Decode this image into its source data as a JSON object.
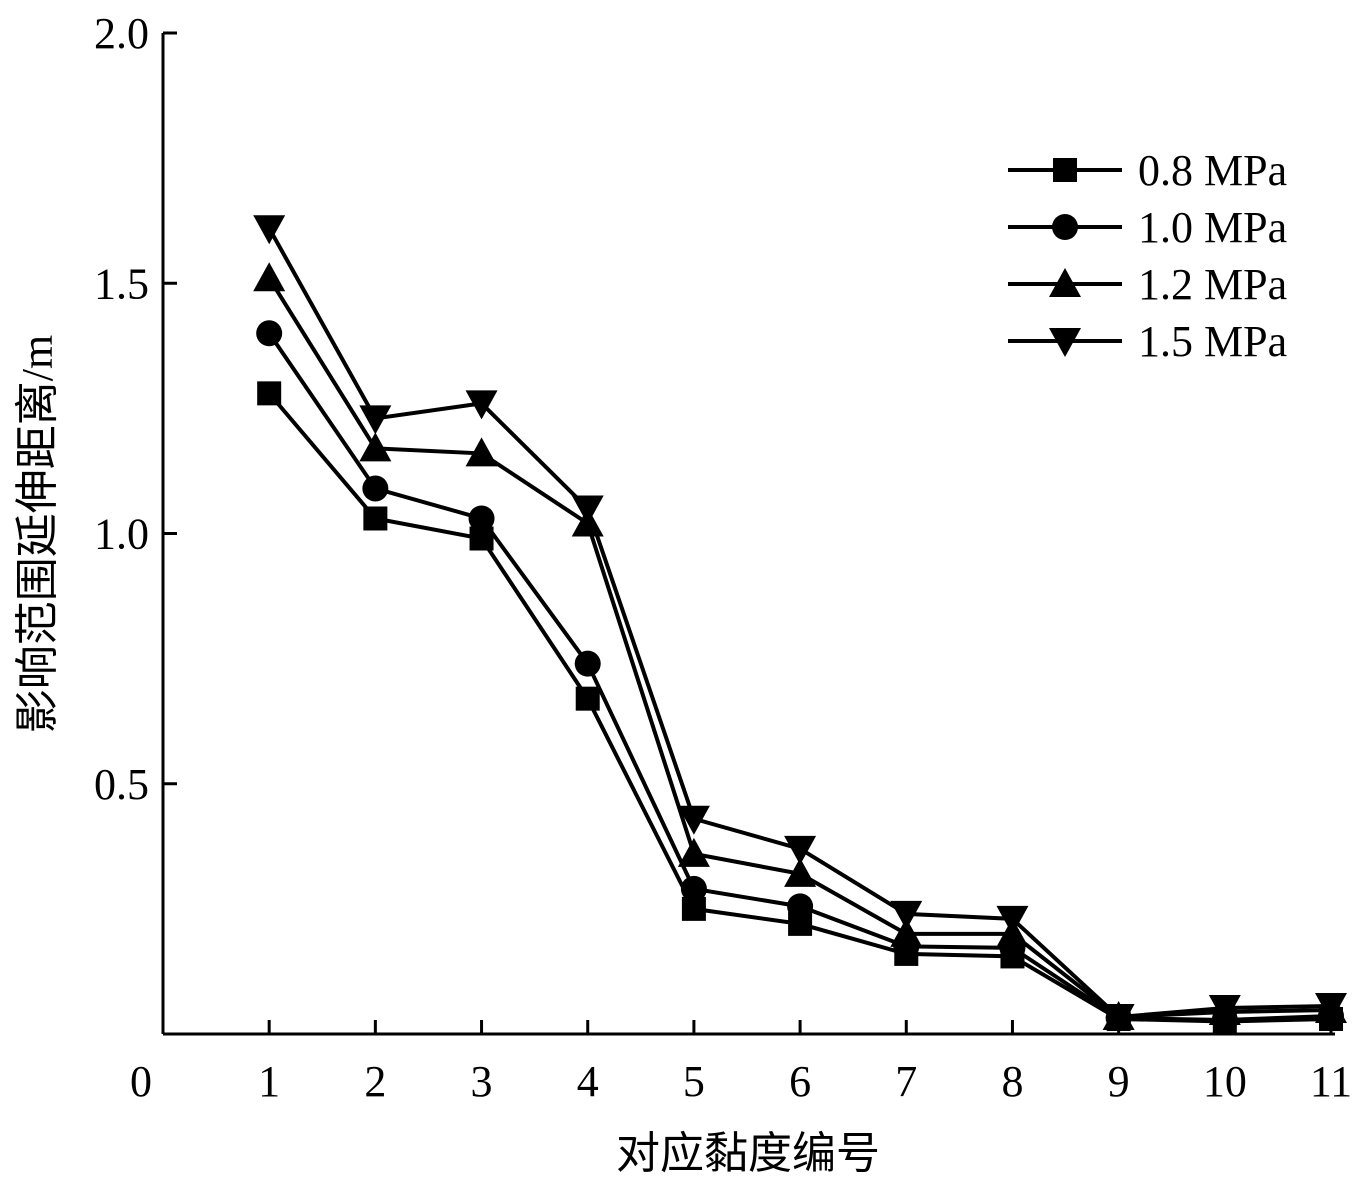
{
  "chart_data": {
    "type": "line",
    "title": "",
    "xlabel": "对应黏度编号",
    "ylabel": "影响范围延伸距离/m",
    "xlim": [
      0,
      11
    ],
    "ylim": [
      0,
      2.0
    ],
    "x_ticks": [
      "0",
      "1",
      "2",
      "3",
      "4",
      "5",
      "6",
      "7",
      "8",
      "9",
      "10",
      "11"
    ],
    "y_ticks": [
      "0.5",
      "1.0",
      "1.5",
      "2.0"
    ],
    "grid": false,
    "legend_position": "top-right",
    "x": [
      1,
      2,
      3,
      4,
      5,
      6,
      7,
      8,
      9,
      10,
      11
    ],
    "series": [
      {
        "name": "0.8 MPa",
        "marker": "square",
        "values": [
          1.28,
          1.03,
          0.99,
          0.67,
          0.25,
          0.22,
          0.16,
          0.155,
          0.03,
          0.025,
          0.03
        ]
      },
      {
        "name": "1.0 MPa",
        "marker": "circle",
        "values": [
          1.4,
          1.09,
          1.03,
          0.74,
          0.29,
          0.255,
          0.175,
          0.172,
          0.032,
          0.028,
          0.036
        ]
      },
      {
        "name": "1.2 MPa",
        "marker": "triangle-up",
        "values": [
          1.51,
          1.17,
          1.16,
          1.02,
          0.36,
          0.32,
          0.2,
          0.2,
          0.034,
          0.044,
          0.048
        ]
      },
      {
        "name": "1.5 MPa",
        "marker": "triangle-down",
        "values": [
          1.61,
          1.23,
          1.26,
          1.05,
          0.43,
          0.37,
          0.24,
          0.23,
          0.034,
          0.052,
          0.056
        ]
      }
    ]
  }
}
